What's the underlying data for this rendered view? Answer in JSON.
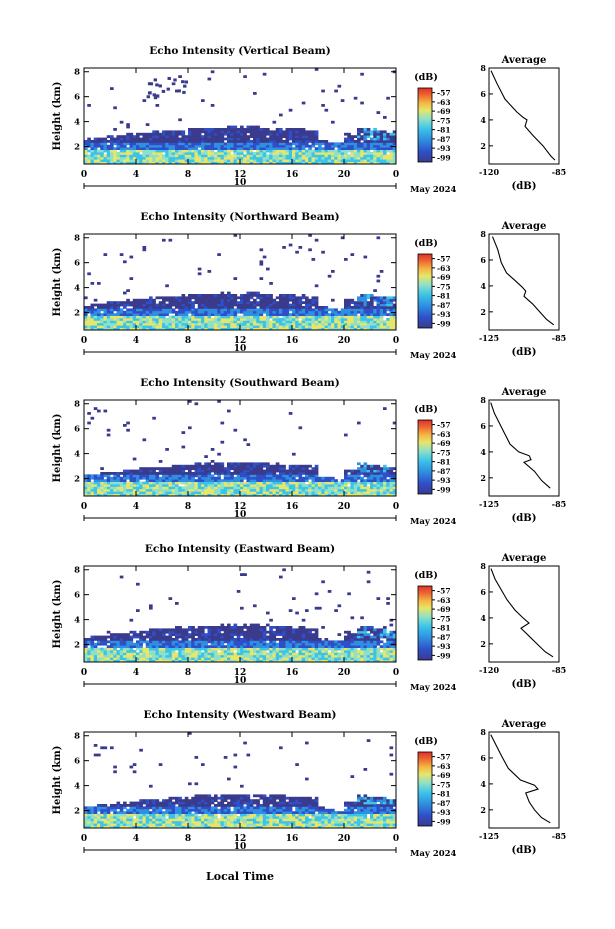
{
  "figure": {
    "xlabel": "Local Time",
    "date_label": "May 2024",
    "colorbar_unit": "(dB)",
    "avg_title": "Average",
    "avg_xlabel": "(dB)"
  },
  "chart_data": [
    {
      "type": "heatmap",
      "title": "Echo Intensity (Vertical Beam)",
      "ylabel": "Height (km)",
      "xlabel": "Local Time",
      "x_ticks": [
        "0",
        "4",
        "8",
        "12",
        "16",
        "20",
        "0"
      ],
      "date_tick": "10",
      "y_ticks": [
        "2",
        "4",
        "6",
        "8"
      ],
      "xlim": [
        0,
        24
      ],
      "ylim": [
        0.6,
        8.3
      ],
      "colorbar_ticks": [
        "-57",
        "-63",
        "-69",
        "-75",
        "-81",
        "-87",
        "-93",
        "-99"
      ],
      "colorbar_range": [
        -102,
        -54
      ],
      "average_profile": {
        "xlim": [
          -120,
          -85
        ],
        "ylim": [
          0.6,
          8
        ],
        "x_ticks": [
          "-120",
          "-85"
        ],
        "y_ticks": [
          "2",
          "4",
          "6",
          "8"
        ],
        "x": [
          -119,
          -116,
          -112,
          -106,
          -103,
          -101,
          -102,
          -98,
          -93,
          -91,
          -89,
          -87
        ],
        "y": [
          7.8,
          6.8,
          5.6,
          4.6,
          4.2,
          4.0,
          3.5,
          2.8,
          2.0,
          1.6,
          1.2,
          0.9
        ]
      }
    },
    {
      "type": "heatmap",
      "title": "Echo Intensity (Northward Beam)",
      "ylabel": "Height (km)",
      "xlabel": "Local Time",
      "x_ticks": [
        "0",
        "4",
        "8",
        "12",
        "16",
        "20",
        "0"
      ],
      "date_tick": "10",
      "y_ticks": [
        "2",
        "4",
        "6",
        "8"
      ],
      "xlim": [
        0,
        24
      ],
      "ylim": [
        0.6,
        8.3
      ],
      "colorbar_ticks": [
        "-57",
        "-63",
        "-69",
        "-75",
        "-81",
        "-87",
        "-93",
        "-99"
      ],
      "colorbar_range": [
        -102,
        -54
      ],
      "average_profile": {
        "xlim": [
          -125,
          -85
        ],
        "ylim": [
          0.6,
          8
        ],
        "x_ticks": [
          "-125",
          "-85"
        ],
        "y_ticks": [
          "2",
          "4",
          "6",
          "8"
        ],
        "x": [
          -123,
          -120,
          -118,
          -115,
          -110,
          -106,
          -104,
          -105,
          -100,
          -96,
          -92,
          -88
        ],
        "y": [
          7.8,
          6.8,
          5.8,
          5.0,
          4.4,
          3.9,
          3.6,
          3.2,
          2.6,
          2.0,
          1.4,
          1.0
        ]
      }
    },
    {
      "type": "heatmap",
      "title": "Echo Intensity (Southward Beam)",
      "ylabel": "Height (km)",
      "xlabel": "Local Time",
      "x_ticks": [
        "0",
        "4",
        "8",
        "12",
        "16",
        "20",
        "0"
      ],
      "date_tick": "10",
      "y_ticks": [
        "2",
        "4",
        "6",
        "8"
      ],
      "xlim": [
        0,
        24
      ],
      "ylim": [
        0.6,
        8.3
      ],
      "colorbar_ticks": [
        "-57",
        "-63",
        "-69",
        "-75",
        "-81",
        "-87",
        "-93",
        "-99"
      ],
      "colorbar_range": [
        -102,
        -54
      ],
      "average_profile": {
        "xlim": [
          -125,
          -85
        ],
        "ylim": [
          0.6,
          8
        ],
        "x_ticks": [
          "-125",
          "-85"
        ],
        "y_ticks": [
          "2",
          "4",
          "6",
          "8"
        ],
        "x": [
          -124,
          -122,
          -119,
          -116,
          -113,
          -108,
          -102,
          -101,
          -105,
          -99,
          -95,
          -90
        ],
        "y": [
          7.8,
          7.0,
          6.2,
          5.4,
          4.6,
          4.0,
          3.7,
          3.4,
          3.2,
          2.5,
          1.8,
          1.2
        ]
      }
    },
    {
      "type": "heatmap",
      "title": "Echo Intensity (Eastward Beam)",
      "ylabel": "Height (km)",
      "xlabel": "Local Time",
      "x_ticks": [
        "0",
        "4",
        "8",
        "12",
        "16",
        "20",
        "0"
      ],
      "date_tick": "10",
      "y_ticks": [
        "2",
        "4",
        "6",
        "8"
      ],
      "xlim": [
        0,
        24
      ],
      "ylim": [
        0.6,
        8.3
      ],
      "colorbar_ticks": [
        "-57",
        "-63",
        "-69",
        "-75",
        "-81",
        "-87",
        "-93",
        "-99"
      ],
      "colorbar_range": [
        -102,
        -54
      ],
      "average_profile": {
        "xlim": [
          -120,
          -85
        ],
        "ylim": [
          0.6,
          8
        ],
        "x_ticks": [
          "-120",
          "-85"
        ],
        "y_ticks": [
          "2",
          "4",
          "6",
          "8"
        ],
        "x": [
          -119,
          -117,
          -114,
          -111,
          -107,
          -103,
          -100,
          -104,
          -100,
          -96,
          -92,
          -88
        ],
        "y": [
          7.8,
          7.0,
          6.2,
          5.4,
          4.6,
          4.0,
          3.6,
          3.2,
          2.6,
          2.0,
          1.4,
          1.0
        ]
      }
    },
    {
      "type": "heatmap",
      "title": "Echo Intensity (Westward Beam)",
      "ylabel": "Height (km)",
      "xlabel": "Local Time",
      "x_ticks": [
        "0",
        "4",
        "8",
        "12",
        "16",
        "20",
        "0"
      ],
      "date_tick": "10",
      "y_ticks": [
        "2",
        "4",
        "6",
        "8"
      ],
      "xlim": [
        0,
        24
      ],
      "ylim": [
        0.6,
        8.3
      ],
      "colorbar_ticks": [
        "-57",
        "-63",
        "-69",
        "-75",
        "-81",
        "-87",
        "-93",
        "-99"
      ],
      "colorbar_range": [
        -102,
        -54
      ],
      "average_profile": {
        "xlim": [
          -125,
          -85
        ],
        "ylim": [
          0.6,
          8
        ],
        "x_ticks": [
          "-125",
          "-85"
        ],
        "y_ticks": [
          "2",
          "4",
          "6",
          "8"
        ],
        "x": [
          -124,
          -121,
          -118,
          -114,
          -107,
          -99,
          -97,
          -104,
          -102,
          -99,
          -95,
          -90
        ],
        "y": [
          7.8,
          7.0,
          6.2,
          5.2,
          4.3,
          3.9,
          3.6,
          3.3,
          2.6,
          2.0,
          1.4,
          1.0
        ]
      }
    }
  ],
  "colors": {
    "colormap": [
      "#3a3b8c",
      "#2f4fc9",
      "#2f8fe0",
      "#3cc3e8",
      "#8ee0c8",
      "#e6e66a",
      "#f5b544",
      "#ee6a33",
      "#e0302a"
    ]
  }
}
